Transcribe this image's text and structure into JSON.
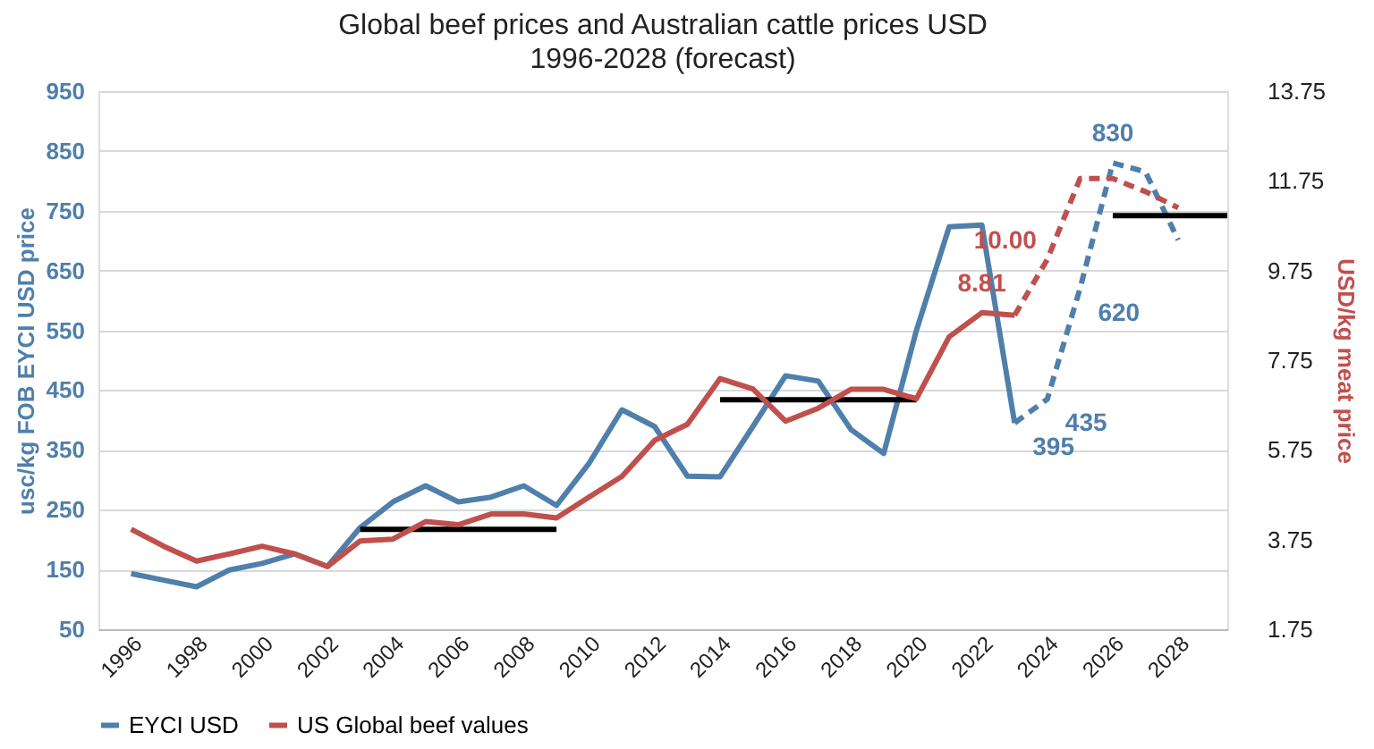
{
  "chart_data": {
    "type": "line",
    "title": "Global beef prices and Australian cattle prices USD",
    "subtitle": "1996-2028 (forecast)",
    "ylabel": "usc/kg FOB EYCI USD price",
    "y2label": "USD/kg meat price",
    "xlim": [
      1995,
      2029.5
    ],
    "xticks": [
      1996,
      1998,
      2000,
      2002,
      2004,
      2006,
      2008,
      2010,
      2012,
      2014,
      2016,
      2018,
      2020,
      2022,
      2024,
      2026,
      2028
    ],
    "ylim": [
      50,
      950
    ],
    "yticks": [
      50,
      150,
      250,
      350,
      450,
      550,
      650,
      750,
      850,
      950
    ],
    "y2lim": [
      1.75,
      13.75
    ],
    "y2ticks": [
      1.75,
      3.75,
      5.75,
      7.75,
      9.75,
      11.75,
      13.75
    ],
    "grid": "y",
    "legend": "bottom",
    "marker": "none",
    "series": [
      {
        "name": "EYCI USD",
        "color": "#4f7fab",
        "line_style": "solid",
        "x": [
          1996,
          1997,
          1998,
          1999,
          2000,
          2001,
          2002,
          2003,
          2004,
          2005,
          2006,
          2007,
          2008,
          2009,
          2010,
          2011,
          2012,
          2013,
          2014,
          2015,
          2016,
          2017,
          2018,
          2019,
          2020,
          2021,
          2022,
          2023
        ],
        "values": [
          143,
          132,
          121,
          149,
          160,
          176,
          155,
          220,
          263,
          290,
          263,
          271,
          290,
          257,
          328,
          417,
          389,
          306,
          305,
          389,
          474,
          465,
          384,
          344,
          550,
          723,
          726,
          395
        ],
        "value_labels": [
          null,
          null,
          null,
          null,
          null,
          null,
          null,
          null,
          null,
          null,
          null,
          null,
          null,
          null,
          null,
          null,
          null,
          null,
          null,
          null,
          null,
          null,
          null,
          null,
          null,
          null,
          null,
          "395"
        ]
      },
      {
        "color": "#4f7fab",
        "line_style": "dashed",
        "x": [
          2023,
          2024,
          2025,
          2026,
          2027,
          2028
        ],
        "values": [
          395,
          435,
          620,
          830,
          815,
          701
        ],
        "value_labels": [
          null,
          "435",
          "620",
          "830",
          null,
          null
        ]
      },
      {
        "name": "US Global beef values",
        "color": "#c0504d",
        "line_style": "solid",
        "axis": "y2",
        "x": [
          1996,
          1997,
          1998,
          1999,
          2000,
          2001,
          2002,
          2003,
          2004,
          2005,
          2006,
          2007,
          2008,
          2009,
          2010,
          2011,
          2012,
          2013,
          2014,
          2015,
          2016,
          2017,
          2018,
          2019,
          2020,
          2021,
          2022,
          2023
        ],
        "values": [
          3.98,
          3.6,
          3.27,
          3.43,
          3.6,
          3.43,
          3.15,
          3.72,
          3.76,
          4.15,
          4.08,
          4.32,
          4.32,
          4.23,
          4.7,
          5.16,
          5.96,
          6.32,
          7.34,
          7.11,
          6.39,
          6.68,
          7.1,
          7.1,
          6.89,
          8.27,
          8.81,
          8.75
        ],
        "value_labels": [
          null,
          null,
          null,
          null,
          null,
          null,
          null,
          null,
          null,
          null,
          null,
          null,
          null,
          null,
          null,
          null,
          null,
          null,
          null,
          null,
          null,
          null,
          null,
          null,
          null,
          null,
          "8.81",
          null
        ]
      },
      {
        "color": "#c0504d",
        "line_style": "dashed",
        "axis": "y2",
        "x": [
          2023,
          2024,
          2025,
          2026,
          2027,
          2028
        ],
        "values": [
          8.75,
          10.0,
          11.8,
          11.8,
          11.51,
          11.15
        ],
        "value_labels": [
          null,
          "10.00",
          null,
          null,
          null,
          null
        ]
      },
      {
        "color": "#000000",
        "line_style": "solid",
        "x": [
          2003,
          2009
        ],
        "values": [
          217,
          217
        ]
      },
      {
        "color": "#000000",
        "line_style": "solid",
        "x": [
          2014,
          2020
        ],
        "values": [
          434,
          434
        ]
      },
      {
        "color": "#000000",
        "line_style": "solid",
        "x": [
          2026,
          2029.5
        ],
        "values": [
          742,
          742
        ]
      }
    ]
  }
}
